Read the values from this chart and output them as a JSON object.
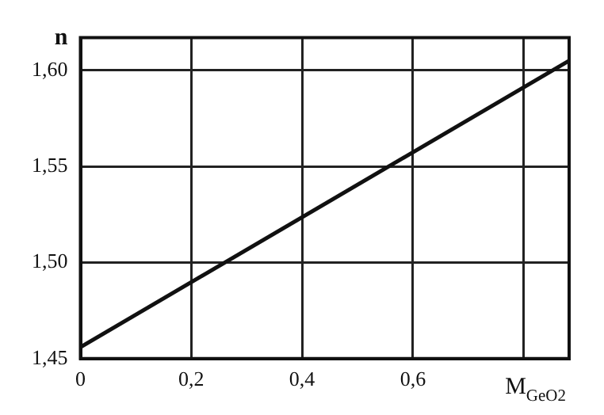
{
  "chart_data": {
    "type": "line",
    "xlabel": "M$_{GeO2}$",
    "ylabel": "n",
    "x": [
      0,
      0.882
    ],
    "series": [
      {
        "color": "#111111",
        "values": [
          1.456,
          1.605
        ]
      }
    ],
    "xlim": [
      0,
      0.882
    ],
    "ylim": [
      1.45,
      1.617
    ],
    "xticks": [
      {
        "value": 0,
        "label": "0"
      },
      {
        "value": 0.2,
        "label": "0,2"
      },
      {
        "value": 0.4,
        "label": "0,4"
      },
      {
        "value": 0.6,
        "label": "0,6"
      },
      {
        "value": 0.8,
        "label": null
      }
    ],
    "yticks": [
      {
        "value": 1.45,
        "label": "1,45"
      },
      {
        "value": 1.5,
        "label": "1,50"
      },
      {
        "value": 1.55,
        "label": "1,55"
      },
      {
        "value": 1.6,
        "label": "1,60"
      }
    ],
    "grid": true,
    "legend": false,
    "marker": "none",
    "line_style": "solid"
  }
}
